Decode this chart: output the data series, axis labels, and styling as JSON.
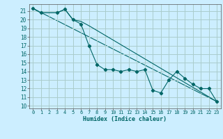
{
  "title": "",
  "xlabel": "Humidex (Indice chaleur)",
  "bg_color": "#cceeff",
  "grid_color": "#aacccc",
  "line_color": "#006666",
  "xlim": [
    -0.5,
    23.5
  ],
  "ylim": [
    9.7,
    21.8
  ],
  "yticks": [
    10,
    11,
    12,
    13,
    14,
    15,
    16,
    17,
    18,
    19,
    20,
    21
  ],
  "xticks": [
    0,
    1,
    2,
    3,
    4,
    5,
    6,
    7,
    8,
    9,
    10,
    11,
    12,
    13,
    14,
    15,
    16,
    17,
    18,
    19,
    20,
    21,
    22,
    23
  ],
  "series1_x": [
    0,
    1,
    3,
    4,
    5,
    6,
    7,
    8,
    9,
    10,
    11,
    12,
    13,
    14,
    15,
    16,
    17,
    18,
    19,
    20,
    21,
    22,
    23
  ],
  "series1_y": [
    21.3,
    20.8,
    20.8,
    21.2,
    20.0,
    19.5,
    17.0,
    14.8,
    14.2,
    14.2,
    14.0,
    14.2,
    14.0,
    14.2,
    11.8,
    11.5,
    13.0,
    14.0,
    13.2,
    12.5,
    12.0,
    12.0,
    10.5
  ],
  "series2_x": [
    0,
    1,
    3,
    4,
    5,
    6,
    7,
    23
  ],
  "series2_y": [
    21.3,
    20.8,
    20.8,
    21.2,
    20.0,
    19.8,
    19.3,
    10.5
  ],
  "series3_x": [
    0,
    23
  ],
  "series3_y": [
    21.3,
    10.5
  ]
}
